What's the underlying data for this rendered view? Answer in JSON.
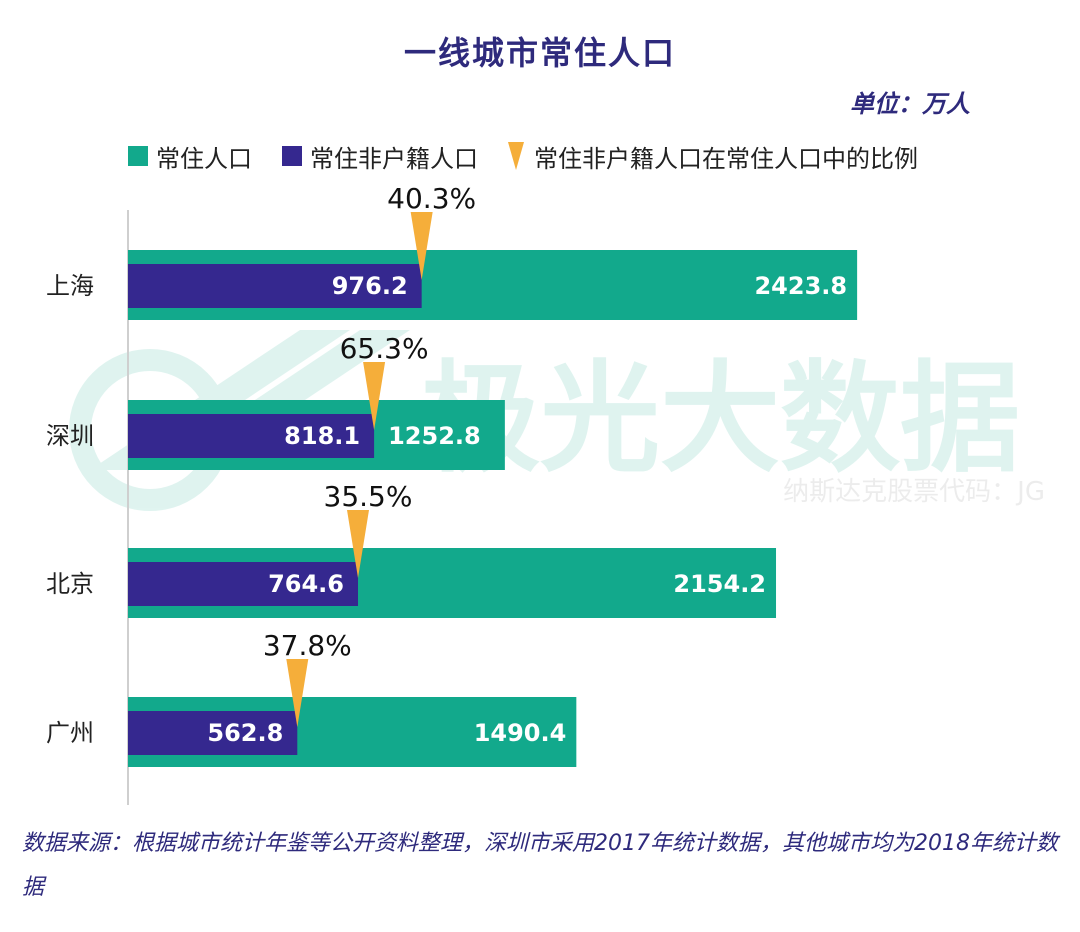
{
  "title": "一线城市常住人口",
  "unit": "单位：万人",
  "legend": {
    "total": "常住人口",
    "non_hukou": "常住非户籍人口",
    "ratio": "常住非户籍人口在常住人口中的比例"
  },
  "colors": {
    "total": "#12a98c",
    "non_hukou": "#35288f",
    "ratio": "#f5ae3a",
    "title": "#2e2a7c"
  },
  "chart_data": {
    "type": "bar",
    "orientation": "horizontal",
    "categories": [
      "上海",
      "深圳",
      "北京",
      "广州"
    ],
    "series": [
      {
        "name": "常住人口",
        "values": [
          2423.8,
          1252.8,
          2154.2,
          1490.4
        ]
      },
      {
        "name": "常住非户籍人口",
        "values": [
          976.2,
          818.1,
          764.6,
          562.8
        ]
      }
    ],
    "value_labels": {
      "total": [
        "2423.8",
        "1252.8",
        "2154.2",
        "1490.4"
      ],
      "non_hukou": [
        "976.2",
        "818.1",
        "764.6",
        "562.8"
      ]
    },
    "ratio_labels": [
      "40.3%",
      "65.3%",
      "35.5%",
      "37.8%"
    ],
    "xlim": [
      0,
      2450
    ],
    "grid": false
  },
  "watermark": {
    "main": "极光大数据",
    "sub": "纳斯达克股票代码：JG"
  },
  "footnote": "数据来源：根据城市统计年鉴等公开资料整理，深圳市采用2017年统计数据，其他城市均为2018年统计数据"
}
